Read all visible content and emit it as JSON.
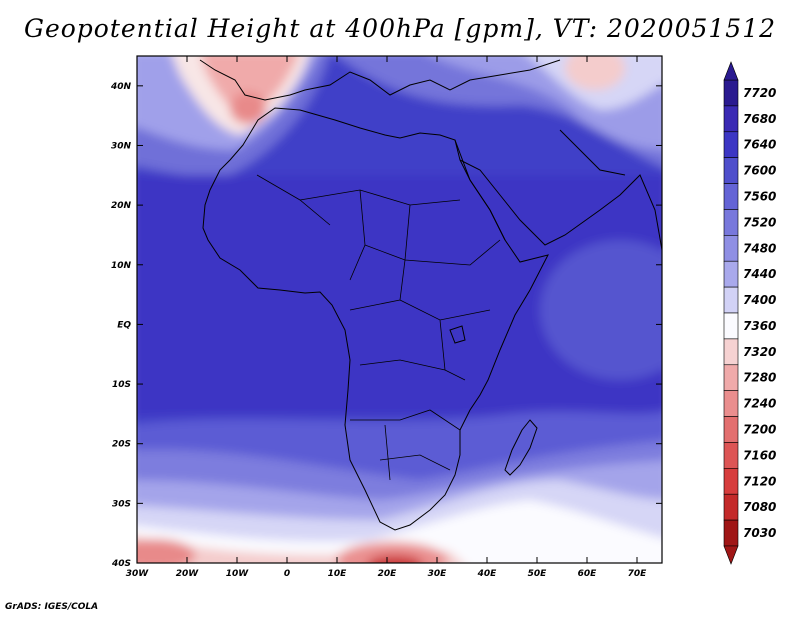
{
  "title": "Geopotential Height at 400hPa [gpm], VT: 2020051512",
  "credit": "GrADS: IGES/COLA",
  "map": {
    "lat_labels": [
      "40N",
      "30N",
      "20N",
      "10N",
      "EQ",
      "10S",
      "20S",
      "30S",
      "40S"
    ],
    "lat_values": [
      40,
      30,
      20,
      10,
      0,
      -10,
      -20,
      -30,
      -40
    ],
    "lon_labels": [
      "30W",
      "20W",
      "10W",
      "0",
      "10E",
      "20E",
      "30E",
      "40E",
      "50E",
      "60E",
      "70E"
    ],
    "lon_values": [
      -30,
      -20,
      -10,
      0,
      10,
      20,
      30,
      40,
      50,
      60,
      70
    ],
    "extent": {
      "lon_min": -30,
      "lon_max": 75,
      "lat_min": -40,
      "lat_max": 45
    }
  },
  "colorbar": {
    "levels": [
      7720,
      7680,
      7640,
      7600,
      7560,
      7520,
      7480,
      7440,
      7400,
      7360,
      7320,
      7280,
      7240,
      7200,
      7160,
      7120,
      7080,
      7030
    ],
    "colors": [
      "#2a1a90",
      "#3a2ab4",
      "#3c36c4",
      "#4f4fcc",
      "#6464d6",
      "#7878dc",
      "#8f8fe4",
      "#a9a9ec",
      "#d2d2f6",
      "#fbfbff",
      "#f6d2d2",
      "#f0aaaa",
      "#ea8e8e",
      "#e36f6f",
      "#dd5555",
      "#d73d3d",
      "#c42a2a",
      "#a01616"
    ]
  }
}
